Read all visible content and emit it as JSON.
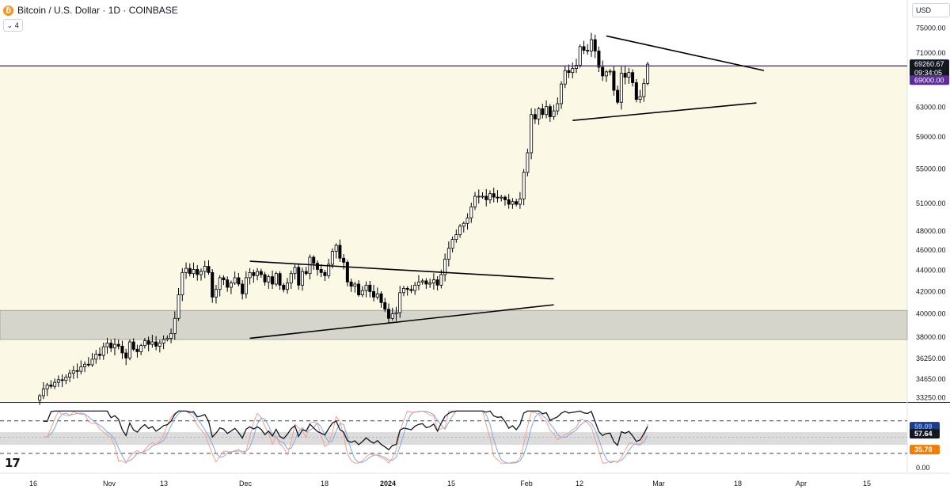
{
  "header": {
    "title": "Bitcoin / U.S. Dollar · 1D · COINBASE",
    "coin_glyph": "₿",
    "indicator_toggle": "4",
    "currency": "USD",
    "brand_logo": "17"
  },
  "price_axis": {
    "labels": [
      "75000.00",
      "71000.00",
      "63000.00",
      "59000.00",
      "55000.00",
      "51000.00",
      "48000.00",
      "46000.00",
      "44000.00",
      "42000.00",
      "40000.00",
      "38000.00",
      "36250.00",
      "34650.00",
      "33250.00"
    ],
    "last_price": "69260.67",
    "countdown": "09:34:05",
    "level_price": "69000.00"
  },
  "oscillator_axis": {
    "upper_value": "59.09",
    "lower_value": "35.78",
    "current_value": "57.64",
    "zero_label": "0.00"
  },
  "time_axis": {
    "labels": [
      "16",
      "Nov",
      "13",
      "Dec",
      "18",
      "2024",
      "15",
      "Feb",
      "12",
      "Mar",
      "18",
      "Apr",
      "15"
    ]
  },
  "colors": {
    "band_yellow": "#fbf9e6",
    "support_zone": "#d6d5cb",
    "horizontal_level": "#5b2d9c",
    "level_tag": "#5b2d9c",
    "last_price_tag": "#131722",
    "candle_up_fill": "#ffffff",
    "candle_down_fill": "#000000",
    "stoch_k": "#f2a08a",
    "stoch_d": "#7fa7e6",
    "oscillator_main": "#131722",
    "osc_lower_tag": "#f57c00"
  },
  "chart_data": {
    "type": "candlestick",
    "title": "Bitcoin / U.S. Dollar · 1D · COINBASE",
    "y_unit": "USD",
    "x_range": [
      "2023-10-06",
      "2024-04-20"
    ],
    "y_range": [
      33000,
      76500
    ],
    "horizontal_level": 69000,
    "support_zone": [
      37800,
      40300
    ],
    "trendlines": [
      {
        "from": [
          "2023-12-03",
          44900
        ],
        "to": [
          "2024-02-22",
          43200
        ]
      },
      {
        "from": [
          "2023-12-03",
          37900
        ],
        "to": [
          "2024-02-22",
          40800
        ]
      },
      {
        "from": [
          "2024-02-27",
          61200
        ],
        "to": [
          "2024-04-16",
          63600
        ]
      },
      {
        "from": [
          "2024-03-07",
          73700
        ],
        "to": [
          "2024-04-18",
          68300
        ]
      }
    ],
    "segments": [
      {
        "from": "2023-10-08",
        "closes": [
          33400,
          33900,
          34200,
          34100,
          34400,
          34600,
          34550,
          34800,
          35100,
          35300,
          35250,
          35600,
          35800,
          35750,
          36200,
          36600,
          36500,
          37200,
          37500,
          37100,
          37400,
          37250,
          36700,
          36300,
          37600,
          37000,
          36800,
          37300,
          37700,
          37400,
          37600,
          37250,
          37500,
          37800,
          37900,
          38300,
          39600,
          41700,
          43800,
          44200,
          43700,
          44100,
          43600,
          43900,
          44400,
          43800,
          41500,
          42200,
          43300,
          43100,
          42400,
          42800,
          43300,
          42700,
          41800,
          43300,
          43800,
          43500,
          43900,
          43600,
          42900,
          43400,
          42700,
          43700,
          42600,
          42200,
          42800,
          43700,
          44300,
          42600,
          43900,
          43700,
          45300,
          44700,
          44100,
          43800,
          43500,
          44600,
          45900,
          46500,
          45200,
          44800,
          42900,
          42500,
          42700,
          41700,
          42100,
          42600,
          42000,
          41500,
          41800,
          41000,
          40400,
          39600,
          40000,
          40100,
          41900,
          42300,
          42200,
          42100,
          42600,
          42900,
          43000,
          42700,
          42800,
          43100,
          42600,
          43600,
          45100,
          46200,
          47100,
          47600,
          48500,
          48800,
          49400,
          50600,
          51800,
          51800,
          51800,
          51400,
          52100,
          51700,
          51600,
          51700,
          51400,
          50900,
          51200,
          50900,
          51500,
          54600,
          57000,
          62000,
          61400,
          62800,
          62000,
          63100,
          61700,
          62500,
          63500,
          66300,
          68300,
          68000,
          68600,
          69100,
          72000,
          71400,
          71300,
          73100,
          71300,
          68800,
          67500,
          68100,
          68200,
          65400,
          63700,
          67900,
          67300,
          68000,
          66500,
          64100,
          64500,
          66400,
          69260
        ]
      }
    ],
    "oscillator": {
      "upper_level": 59.09,
      "lower_level": 35.78,
      "current": 57.64
    }
  }
}
